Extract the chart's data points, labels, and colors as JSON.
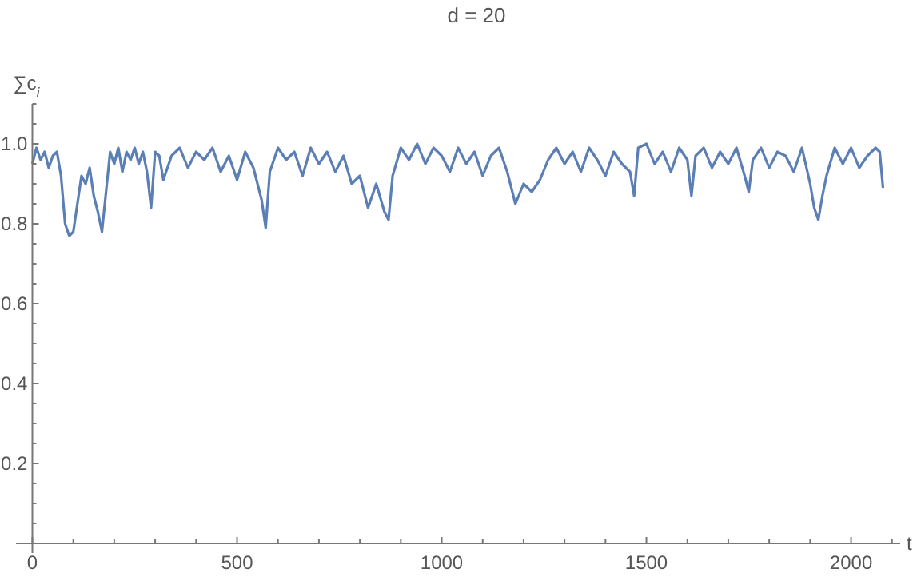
{
  "chart_data": {
    "type": "line",
    "title": "d = 20",
    "xlabel": "t",
    "ylabel": "∑c$_{i}$",
    "xlim": [
      -40,
      2120
    ],
    "ylim": [
      0,
      1.1
    ],
    "xticks": [
      0,
      500,
      1000,
      1500,
      2000
    ],
    "yticks": [
      0.2,
      0.4,
      0.6,
      0.8,
      {
        "value": 1,
        "label": "1.0"
      }
    ],
    "grid": false,
    "series": [
      {
        "color": "#5b7fb5",
        "x": [
          0,
          10,
          20,
          30,
          40,
          50,
          60,
          70,
          80,
          90,
          100,
          110,
          120,
          130,
          140,
          150,
          160,
          170,
          180,
          190,
          200,
          210,
          220,
          230,
          240,
          250,
          260,
          270,
          280,
          290,
          300,
          310,
          320,
          340,
          360,
          380,
          400,
          420,
          440,
          460,
          480,
          500,
          520,
          540,
          560,
          570,
          580,
          600,
          620,
          640,
          660,
          680,
          700,
          720,
          740,
          760,
          780,
          800,
          820,
          840,
          860,
          870,
          880,
          900,
          920,
          940,
          960,
          980,
          1000,
          1020,
          1040,
          1060,
          1080,
          1100,
          1120,
          1140,
          1160,
          1180,
          1200,
          1220,
          1240,
          1260,
          1280,
          1300,
          1320,
          1340,
          1360,
          1380,
          1400,
          1420,
          1440,
          1460,
          1470,
          1480,
          1500,
          1520,
          1540,
          1560,
          1580,
          1600,
          1610,
          1620,
          1640,
          1660,
          1680,
          1700,
          1720,
          1740,
          1750,
          1760,
          1780,
          1800,
          1820,
          1840,
          1860,
          1880,
          1900,
          1910,
          1920,
          1930,
          1940,
          1960,
          1980,
          2000,
          2020,
          2040,
          2060,
          2070,
          2078
        ],
        "values": [
          0.95,
          0.99,
          0.96,
          0.98,
          0.94,
          0.97,
          0.98,
          0.92,
          0.8,
          0.77,
          0.78,
          0.85,
          0.92,
          0.9,
          0.94,
          0.87,
          0.83,
          0.78,
          0.88,
          0.98,
          0.95,
          0.99,
          0.93,
          0.98,
          0.96,
          0.99,
          0.95,
          0.98,
          0.93,
          0.84,
          0.98,
          0.97,
          0.91,
          0.97,
          0.99,
          0.94,
          0.98,
          0.96,
          0.99,
          0.93,
          0.97,
          0.91,
          0.98,
          0.94,
          0.86,
          0.79,
          0.93,
          0.99,
          0.96,
          0.98,
          0.92,
          0.99,
          0.95,
          0.98,
          0.93,
          0.97,
          0.9,
          0.92,
          0.84,
          0.9,
          0.83,
          0.81,
          0.92,
          0.99,
          0.96,
          1.0,
          0.95,
          0.99,
          0.97,
          0.93,
          0.99,
          0.95,
          0.98,
          0.92,
          0.97,
          0.99,
          0.93,
          0.85,
          0.9,
          0.88,
          0.91,
          0.96,
          0.99,
          0.95,
          0.98,
          0.93,
          0.99,
          0.96,
          0.92,
          0.98,
          0.95,
          0.93,
          0.87,
          0.99,
          1.0,
          0.95,
          0.98,
          0.93,
          0.99,
          0.96,
          0.87,
          0.97,
          0.99,
          0.94,
          0.98,
          0.95,
          0.99,
          0.92,
          0.88,
          0.96,
          0.99,
          0.94,
          0.98,
          0.97,
          0.93,
          0.99,
          0.9,
          0.84,
          0.81,
          0.87,
          0.92,
          0.99,
          0.95,
          0.99,
          0.94,
          0.97,
          0.99,
          0.98,
          0.89
        ]
      }
    ]
  }
}
